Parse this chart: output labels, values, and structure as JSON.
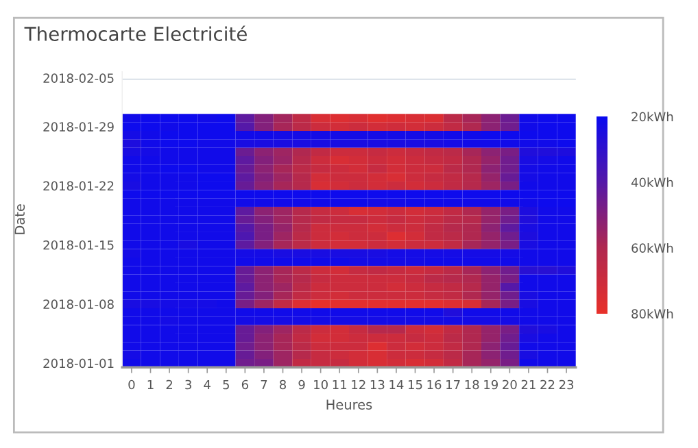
{
  "chart_data": {
    "type": "heatmap",
    "title": "Thermocarte Electricité",
    "xlabel": "Heures",
    "ylabel": "Date",
    "categories": [
      "0",
      "1",
      "2",
      "3",
      "4",
      "5",
      "6",
      "7",
      "8",
      "9",
      "10",
      "11",
      "12",
      "13",
      "14",
      "15",
      "16",
      "17",
      "18",
      "19",
      "20",
      "21",
      "22",
      "23"
    ],
    "annotations": [
      "2018-02-05"
    ],
    "y_categories": [
      null,
      "2018-01-29",
      null,
      null,
      null,
      null,
      null,
      null,
      "2018-01-22",
      null,
      null,
      null,
      null,
      null,
      null,
      "2018-01-15",
      null,
      null,
      null,
      null,
      null,
      null,
      "2018-01-08",
      null,
      null,
      null,
      null,
      null,
      null,
      "2018-01-01"
    ],
    "clim": [
      20,
      80
    ],
    "cticks": [
      {
        "value": 20,
        "label": "20kWh"
      },
      {
        "value": 40,
        "label": "40kWh"
      },
      {
        "value": 60,
        "label": "60kWh"
      },
      {
        "value": 80,
        "label": "80kWh"
      }
    ],
    "colors": [
      "#0a0af0",
      "#5518a8",
      "#b02850",
      "#e8302a"
    ],
    "cells": [
      [
        22,
        21,
        21,
        21,
        22,
        21,
        42,
        50,
        57,
        65,
        74,
        76,
        74,
        77,
        76,
        74,
        75,
        64,
        58,
        52,
        45,
        22,
        21,
        21
      ],
      [
        21,
        21,
        22,
        21,
        21,
        21,
        40,
        50,
        58,
        64,
        70,
        72,
        70,
        72,
        71,
        72,
        70,
        66,
        60,
        52,
        46,
        22,
        21,
        21
      ],
      [
        23,
        22,
        21,
        21,
        21,
        21,
        22,
        22,
        23,
        23,
        23,
        23,
        23,
        23,
        23,
        23,
        23,
        22,
        22,
        21,
        21,
        21,
        21,
        21
      ],
      [
        25,
        22,
        21,
        21,
        22,
        22,
        24,
        24,
        24,
        24,
        24,
        24,
        24,
        24,
        24,
        24,
        24,
        23,
        22,
        22,
        22,
        22,
        22,
        21
      ],
      [
        24,
        23,
        22,
        22,
        22,
        22,
        45,
        52,
        56,
        60,
        66,
        70,
        70,
        68,
        70,
        68,
        66,
        64,
        58,
        52,
        48,
        26,
        26,
        25
      ],
      [
        22,
        22,
        22,
        22,
        22,
        22,
        42,
        50,
        55,
        62,
        70,
        74,
        72,
        70,
        72,
        70,
        68,
        66,
        60,
        54,
        46,
        24,
        23,
        22
      ],
      [
        22,
        22,
        21,
        21,
        22,
        22,
        44,
        52,
        58,
        64,
        68,
        70,
        72,
        68,
        72,
        70,
        70,
        64,
        60,
        52,
        46,
        23,
        22,
        22
      ],
      [
        23,
        22,
        22,
        22,
        21,
        21,
        42,
        50,
        56,
        62,
        72,
        70,
        70,
        72,
        74,
        70,
        68,
        66,
        62,
        54,
        44,
        23,
        22,
        22
      ],
      [
        24,
        22,
        22,
        22,
        21,
        21,
        44,
        52,
        58,
        62,
        74,
        72,
        70,
        72,
        70,
        72,
        70,
        66,
        62,
        56,
        48,
        22,
        22,
        22
      ],
      [
        21,
        21,
        21,
        21,
        21,
        21,
        21,
        21,
        21,
        21,
        21,
        21,
        21,
        21,
        21,
        21,
        21,
        21,
        21,
        21,
        21,
        21,
        21,
        21
      ],
      [
        22,
        22,
        22,
        22,
        22,
        22,
        22,
        22,
        22,
        22,
        22,
        22,
        22,
        23,
        23,
        22,
        22,
        22,
        22,
        22,
        22,
        22,
        21,
        21
      ],
      [
        22,
        22,
        22,
        22,
        22,
        22,
        42,
        52,
        56,
        62,
        68,
        70,
        74,
        72,
        70,
        72,
        70,
        66,
        60,
        54,
        48,
        25,
        22,
        22
      ],
      [
        22,
        22,
        22,
        22,
        22,
        22,
        44,
        50,
        56,
        62,
        66,
        68,
        68,
        70,
        68,
        70,
        68,
        64,
        62,
        54,
        46,
        26,
        22,
        22
      ],
      [
        22,
        22,
        22,
        22,
        22,
        22,
        40,
        48,
        54,
        62,
        70,
        70,
        70,
        72,
        70,
        70,
        66,
        62,
        60,
        52,
        42,
        24,
        22,
        22
      ],
      [
        22,
        22,
        22,
        22,
        22,
        22,
        38,
        48,
        56,
        64,
        70,
        72,
        70,
        70,
        76,
        72,
        66,
        64,
        60,
        54,
        46,
        25,
        22,
        22
      ],
      [
        22,
        22,
        22,
        24,
        22,
        22,
        42,
        50,
        58,
        64,
        70,
        72,
        72,
        70,
        72,
        70,
        70,
        66,
        58,
        54,
        48,
        24,
        22,
        22
      ],
      [
        23,
        22,
        22,
        22,
        22,
        22,
        23,
        23,
        24,
        24,
        24,
        24,
        24,
        24,
        23,
        23,
        23,
        23,
        23,
        23,
        23,
        22,
        22,
        22
      ],
      [
        22,
        22,
        22,
        22,
        22,
        22,
        22,
        22,
        22,
        22,
        22,
        22,
        23,
        23,
        23,
        23,
        22,
        22,
        22,
        22,
        22,
        22,
        22,
        22
      ],
      [
        22,
        22,
        22,
        22,
        22,
        22,
        44,
        52,
        58,
        64,
        70,
        72,
        68,
        66,
        68,
        70,
        68,
        64,
        58,
        52,
        46,
        28,
        28,
        26
      ],
      [
        22,
        22,
        22,
        22,
        22,
        22,
        44,
        52,
        58,
        62,
        68,
        70,
        70,
        70,
        70,
        68,
        64,
        62,
        60,
        54,
        48,
        22,
        22,
        22
      ],
      [
        22,
        22,
        22,
        22,
        22,
        22,
        42,
        52,
        56,
        64,
        70,
        70,
        70,
        70,
        72,
        70,
        68,
        66,
        62,
        54,
        40,
        22,
        22,
        22
      ],
      [
        22,
        22,
        22,
        22,
        22,
        22,
        44,
        50,
        58,
        66,
        70,
        72,
        70,
        70,
        70,
        70,
        68,
        66,
        60,
        54,
        46,
        24,
        22,
        22
      ],
      [
        24,
        24,
        23,
        23,
        23,
        22,
        48,
        56,
        66,
        76,
        80,
        78,
        78,
        78,
        78,
        78,
        78,
        76,
        74,
        58,
        48,
        24,
        22,
        22
      ],
      [
        22,
        22,
        22,
        22,
        22,
        22,
        22,
        22,
        22,
        22,
        22,
        22,
        22,
        22,
        22,
        22,
        22,
        26,
        22,
        22,
        22,
        22,
        22,
        22
      ],
      [
        22,
        22,
        23,
        22,
        22,
        22,
        23,
        23,
        23,
        23,
        23,
        23,
        23,
        23,
        23,
        23,
        23,
        23,
        23,
        23,
        23,
        22,
        22,
        22
      ],
      [
        22,
        22,
        22,
        22,
        22,
        22,
        44,
        50,
        56,
        64,
        70,
        72,
        68,
        62,
        62,
        70,
        72,
        66,
        60,
        54,
        48,
        26,
        24,
        22
      ],
      [
        22,
        22,
        22,
        22,
        22,
        22,
        44,
        52,
        58,
        66,
        72,
        72,
        70,
        70,
        70,
        68,
        70,
        64,
        60,
        54,
        46,
        24,
        22,
        22
      ],
      [
        22,
        22,
        22,
        22,
        22,
        22,
        46,
        52,
        58,
        64,
        70,
        70,
        70,
        76,
        70,
        72,
        70,
        66,
        60,
        52,
        44,
        22,
        22,
        22
      ],
      [
        23,
        22,
        22,
        22,
        22,
        22,
        44,
        50,
        56,
        62,
        68,
        70,
        72,
        74,
        70,
        70,
        68,
        64,
        58,
        52,
        46,
        24,
        22,
        22
      ],
      [
        22,
        22,
        22,
        22,
        22,
        22,
        46,
        48,
        56,
        66,
        68,
        68,
        72,
        74,
        72,
        74,
        72,
        66,
        58,
        54,
        48,
        22,
        22,
        22
      ]
    ]
  }
}
